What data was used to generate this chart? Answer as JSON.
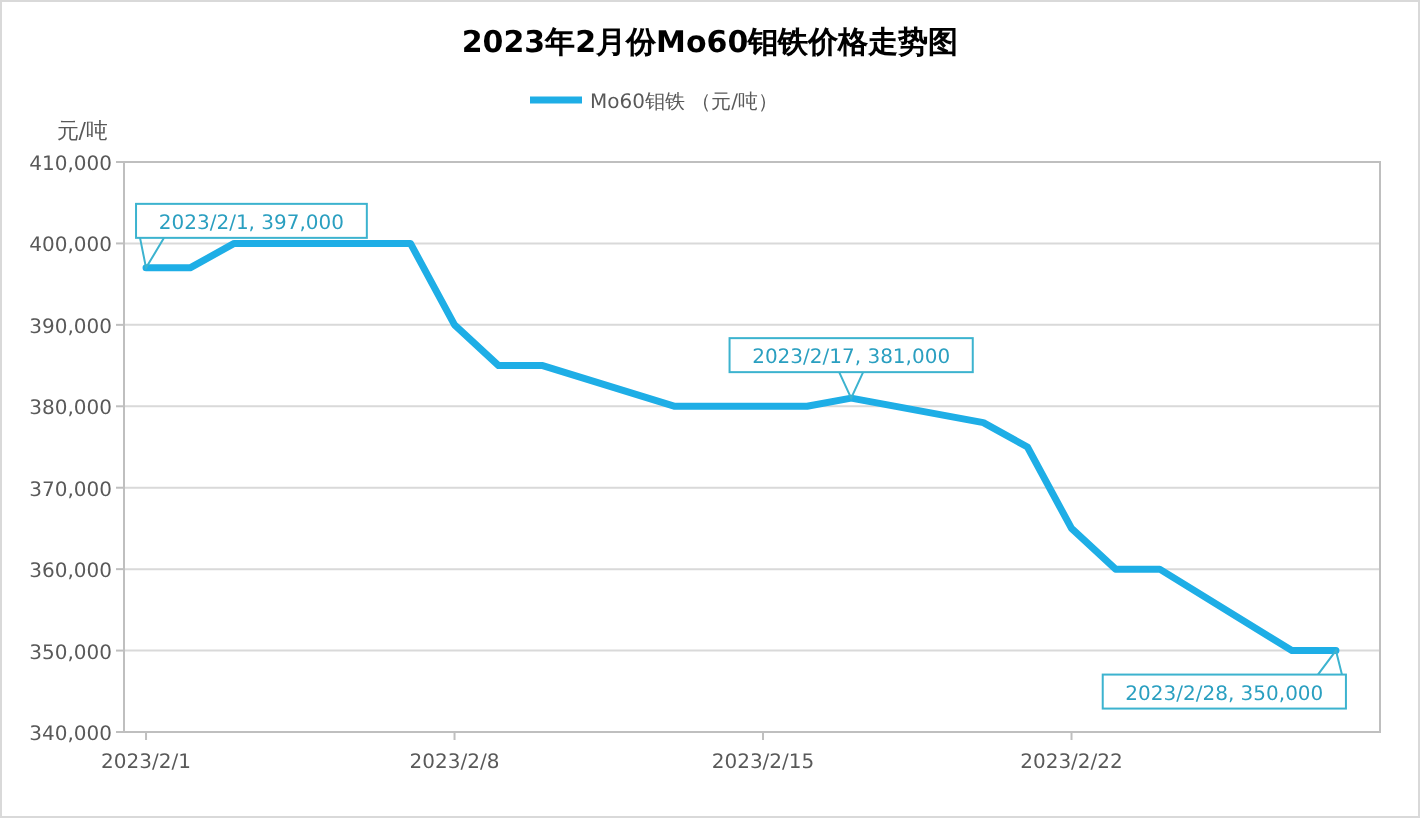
{
  "chart_data": {
    "type": "line",
    "title": "2023年2月份Mo60钼铁价格走势图",
    "ylabel": "元/吨",
    "x": [
      "2023-02-01",
      "2023-02-02",
      "2023-02-03",
      "2023-02-06",
      "2023-02-07",
      "2023-02-08",
      "2023-02-09",
      "2023-02-10",
      "2023-02-13",
      "2023-02-14",
      "2023-02-15",
      "2023-02-16",
      "2023-02-17",
      "2023-02-20",
      "2023-02-21",
      "2023-02-22",
      "2023-02-23",
      "2023-02-24",
      "2023-02-27",
      "2023-02-28"
    ],
    "series": [
      {
        "name": "Mo60钼铁 （元/吨）",
        "color": "#1eaee6",
        "values": [
          397000,
          397000,
          400000,
          400000,
          400000,
          390000,
          385000,
          385000,
          380000,
          380000,
          380000,
          380000,
          381000,
          378000,
          375000,
          365000,
          360000,
          360000,
          350000,
          350000
        ]
      }
    ],
    "xlim": [
      "2023-01-31T12:00",
      "2023-03-01"
    ],
    "xticks": [
      {
        "value": "2023-02-01",
        "label": "2023/2/1"
      },
      {
        "value": "2023-02-08",
        "label": "2023/2/8"
      },
      {
        "value": "2023-02-15",
        "label": "2023/2/15"
      },
      {
        "value": "2023-02-22",
        "label": "2023/2/22"
      }
    ],
    "ylim": [
      340000,
      410000
    ],
    "yticks": [
      {
        "value": 340000,
        "label": "340,000"
      },
      {
        "value": 350000,
        "label": "350,000"
      },
      {
        "value": 360000,
        "label": "360,000"
      },
      {
        "value": 370000,
        "label": "370,000"
      },
      {
        "value": 380000,
        "label": "380,000"
      },
      {
        "value": 390000,
        "label": "390,000"
      },
      {
        "value": 400000,
        "label": "400,000"
      },
      {
        "value": 410000,
        "label": "410,000"
      }
    ],
    "annotations": [
      {
        "text": "2023/2/1, 397,000",
        "x": "2023-02-01",
        "y": 397000
      },
      {
        "text": "2023/2/17, 381,000",
        "x": "2023-02-17",
        "y": 381000
      },
      {
        "text": "2023/2/28, 350,000",
        "x": "2023-02-28",
        "y": 350000
      }
    ],
    "grid": "y",
    "legend": "top",
    "marker": "none",
    "line_style": "solid"
  }
}
